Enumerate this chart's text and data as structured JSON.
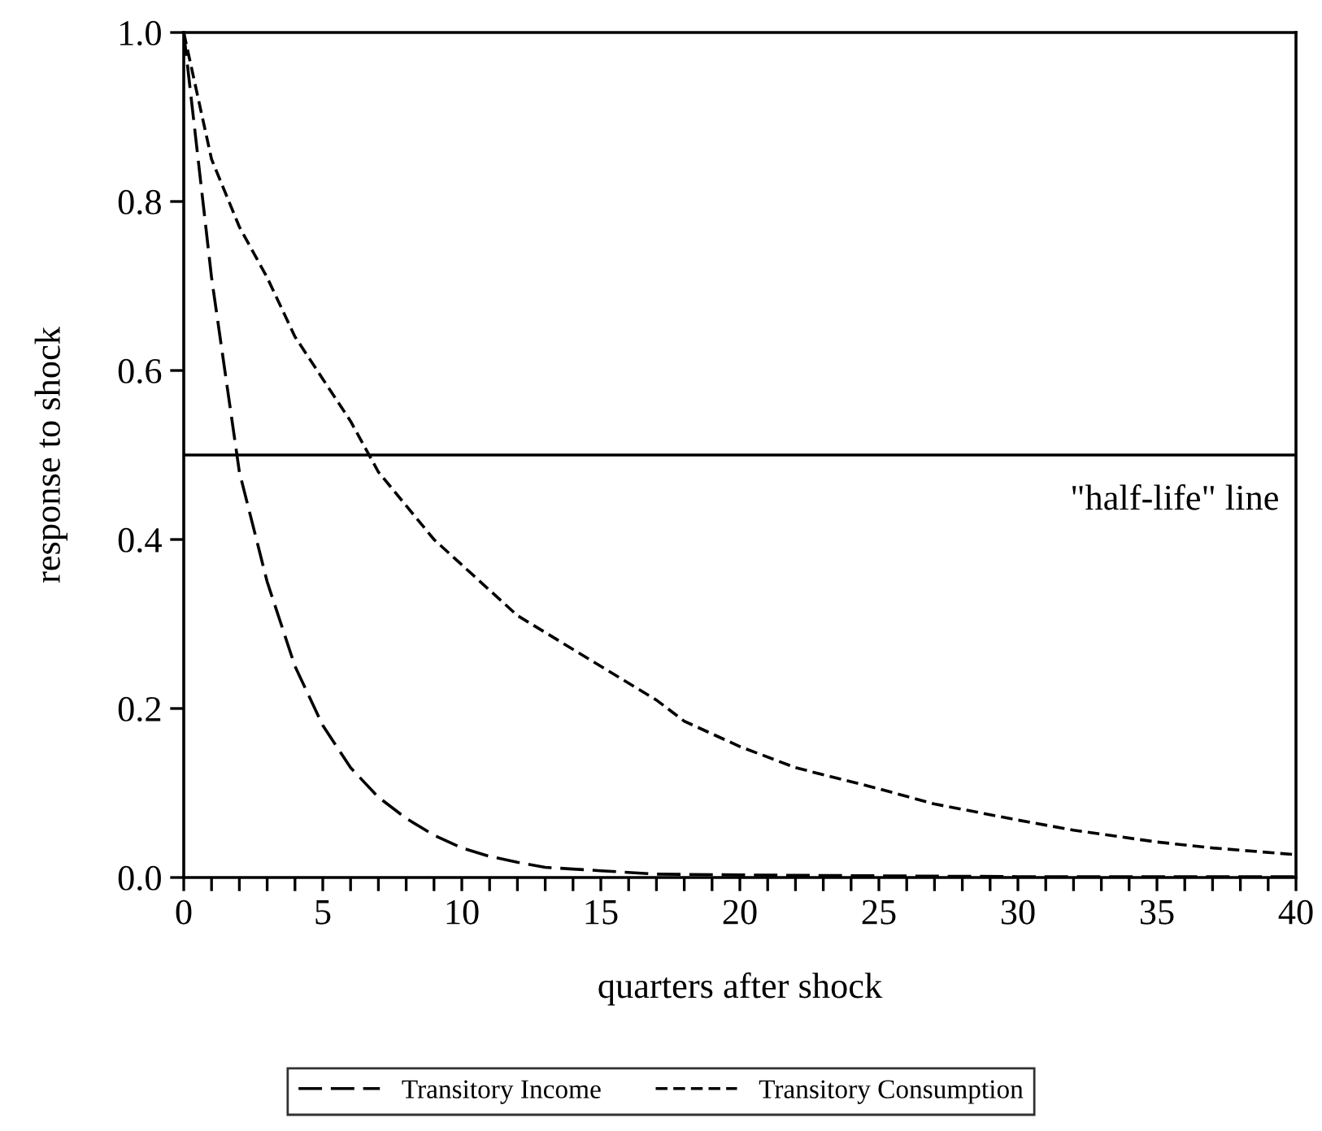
{
  "chart_data": {
    "type": "line",
    "xlabel": "quarters after shock",
    "ylabel": "response to shock",
    "xlim": [
      0,
      40
    ],
    "ylim": [
      0,
      1.0
    ],
    "xticks": [
      0,
      {
        "value": 1,
        "label": null
      },
      {
        "value": 2,
        "label": null
      },
      {
        "value": 3,
        "label": null
      },
      {
        "value": 4,
        "label": null
      },
      5,
      {
        "value": 6,
        "label": null
      },
      {
        "value": 7,
        "label": null
      },
      {
        "value": 8,
        "label": null
      },
      {
        "value": 9,
        "label": null
      },
      10,
      {
        "value": 11,
        "label": null
      },
      {
        "value": 12,
        "label": null
      },
      {
        "value": 13,
        "label": null
      },
      {
        "value": 14,
        "label": null
      },
      15,
      {
        "value": 16,
        "label": null
      },
      {
        "value": 17,
        "label": null
      },
      {
        "value": 18,
        "label": null
      },
      {
        "value": 19,
        "label": null
      },
      20,
      {
        "value": 21,
        "label": null
      },
      {
        "value": 22,
        "label": null
      },
      {
        "value": 23,
        "label": null
      },
      {
        "value": 24,
        "label": null
      },
      25,
      {
        "value": 26,
        "label": null
      },
      {
        "value": 27,
        "label": null
      },
      {
        "value": 28,
        "label": null
      },
      {
        "value": 29,
        "label": null
      },
      30,
      {
        "value": 31,
        "label": null
      },
      {
        "value": 32,
        "label": null
      },
      {
        "value": 33,
        "label": null
      },
      {
        "value": 34,
        "label": null
      },
      35,
      {
        "value": 36,
        "label": null
      },
      {
        "value": 37,
        "label": null
      },
      {
        "value": 38,
        "label": null
      },
      {
        "value": 39,
        "label": null
      },
      40
    ],
    "yticks": [
      {
        "value": 0,
        "label": "0.0"
      },
      0.2,
      0.4,
      0.6,
      0.8,
      {
        "value": 1.0,
        "label": "1.0"
      }
    ],
    "grid": false,
    "legend": "bottom",
    "marker": "none",
    "ref_lines": [
      {
        "axis": "y",
        "value": 0.5,
        "label": "\"half-life\" line",
        "color": "#000000",
        "line_style": "solid"
      }
    ],
    "series": [
      {
        "name": "Transitory Income",
        "color": "#000000",
        "line_style": "dashed",
        "x": [
          0,
          1,
          2,
          3,
          4,
          5,
          6,
          7,
          8,
          9,
          10,
          11,
          12,
          13,
          14,
          15,
          17,
          20,
          25,
          30,
          35,
          40
        ],
        "values": [
          1.0,
          0.71,
          0.48,
          0.35,
          0.25,
          0.18,
          0.13,
          0.095,
          0.07,
          0.05,
          0.035,
          0.025,
          0.018,
          0.012,
          0.01,
          0.008,
          0.004,
          0.003,
          0.002,
          0.001,
          0.001,
          0.001
        ]
      },
      {
        "name": "Transitory Consumption",
        "color": "#000000",
        "line_style": "dotted",
        "x": [
          0,
          1,
          2,
          3,
          4,
          5,
          6,
          7,
          8,
          9,
          10,
          12,
          14,
          15,
          17,
          18,
          20,
          22,
          25,
          27,
          30,
          32,
          35,
          37,
          40
        ],
        "values": [
          1.0,
          0.85,
          0.77,
          0.71,
          0.64,
          0.59,
          0.54,
          0.48,
          0.44,
          0.4,
          0.37,
          0.31,
          0.27,
          0.25,
          0.21,
          0.185,
          0.155,
          0.13,
          0.105,
          0.087,
          0.068,
          0.056,
          0.042,
          0.035,
          0.027
        ]
      }
    ]
  }
}
